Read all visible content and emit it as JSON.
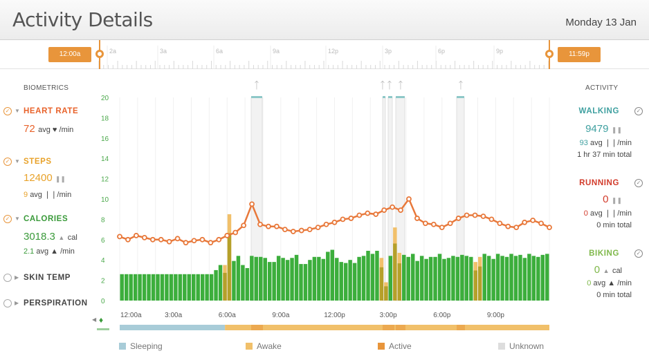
{
  "header": {
    "title": "Activity Details",
    "date": "Monday 13 Jan"
  },
  "timeline": {
    "start_label": "12:00a",
    "end_label": "11:59p",
    "hour_labels": [
      "2a",
      "3a",
      "6a",
      "9a",
      "12p",
      "3p",
      "6p",
      "9p"
    ]
  },
  "biometrics": {
    "heading": "BIOMETRICS",
    "heart_rate": {
      "label": "HEART RATE",
      "value": "72",
      "unit": "avg ♥ /min",
      "color": "#e8622a"
    },
    "steps": {
      "label": "STEPS",
      "value": "12400",
      "avg_value": "9",
      "avg_unit": "avg ❘❘/min",
      "color": "#e8a22a"
    },
    "calories": {
      "label": "CALORIES",
      "value": "3018.3",
      "unit": "cal",
      "avg_value": "2.1",
      "avg_unit": "avg ▲ /min",
      "color": "#3a9a3a"
    },
    "skin_temp": {
      "label": "SKIN TEMP"
    },
    "perspiration": {
      "label": "PERSPIRATION"
    }
  },
  "activity": {
    "heading": "ACTIVITY",
    "walking": {
      "label": "WALKING",
      "value": "9479",
      "avg_value": "93",
      "avg_unit": "avg ❘❘/min",
      "total": "1 hr 37 min total",
      "color": "#3fa0a0"
    },
    "running": {
      "label": "RUNNING",
      "value": "0",
      "avg_value": "0",
      "avg_unit": "avg ❘❘/min",
      "total": "0 min total",
      "color": "#d23a2a"
    },
    "biking": {
      "label": "BIKING",
      "value": "0",
      "unit": "cal",
      "avg_value": "0",
      "avg_unit": "avg ▲ /min",
      "total": "0 min total",
      "color": "#7fb84a"
    }
  },
  "legend": [
    "Sleeping",
    "Awake",
    "Active",
    "Unknown"
  ],
  "colors": {
    "sleeping": "#a8ccd8",
    "awake": "#f1c06a",
    "active": "#e8953b",
    "unknown": "#dddddd",
    "hr": "#e8783a",
    "cal": "#3cae3c",
    "cal_active": "#b5a02a"
  },
  "chart_data": {
    "type": "bar",
    "y_ticks": [
      "0",
      "2",
      "4",
      "6",
      "8",
      "10",
      "12",
      "14",
      "16",
      "18",
      "20"
    ],
    "ylim": [
      0,
      20
    ],
    "x_tick_labels": [
      "12:00a",
      "3:00a",
      "6:00a",
      "9:00a",
      "12:00p",
      "3:00p",
      "6:00p",
      "9:00p"
    ],
    "calories": [
      2.6,
      2.6,
      2.6,
      2.6,
      2.6,
      2.6,
      2.6,
      2.6,
      2.6,
      2.6,
      2.6,
      2.6,
      2.6,
      2.6,
      2.6,
      2.6,
      2.6,
      2.6,
      2.6,
      2.6,
      2.6,
      3.0,
      3.5,
      4.0,
      3.6,
      3.9,
      4.4,
      3.5,
      3.2,
      4.4,
      4.3,
      4.3,
      4.2,
      3.8,
      3.8,
      4.4,
      4.2,
      4.0,
      4.2,
      4.5,
      3.6,
      3.6,
      4.0,
      4.3,
      4.3,
      4.1,
      4.8,
      5.0,
      4.2,
      3.8,
      3.7,
      4.0,
      3.7,
      4.3,
      4.4,
      4.9,
      4.6,
      4.9,
      4.2,
      4.5,
      4.4,
      4.3,
      4.2,
      4.5,
      4.3,
      4.6,
      3.9,
      4.4,
      4.1,
      4.3,
      4.3,
      4.6,
      4.1,
      4.2,
      4.4,
      4.3,
      4.5,
      4.4,
      4.3,
      4.3,
      4.0,
      4.6,
      4.4,
      4.1,
      4.6,
      4.4,
      4.3,
      4.6,
      4.4,
      4.5,
      4.2,
      4.6,
      4.4,
      4.3,
      4.5,
      4.6
    ],
    "heart_rate": [
      6.3,
      6.0,
      6.4,
      6.2,
      6.0,
      6.0,
      5.8,
      6.1,
      5.7,
      5.9,
      6.0,
      5.7,
      6.0,
      6.4,
      6.7,
      7.4,
      9.5,
      7.5,
      7.3,
      7.3,
      7.0,
      6.8,
      6.9,
      7.0,
      7.2,
      7.5,
      7.7,
      8.0,
      8.1,
      8.4,
      8.6,
      8.5,
      8.9,
      9.2,
      8.9,
      10.0,
      8.1,
      7.6,
      7.5,
      7.2,
      7.6,
      8.1,
      8.4,
      8.4,
      8.3,
      8.0,
      7.6,
      7.3,
      7.2,
      7.7,
      7.9,
      7.6,
      7.2
    ],
    "active_bars": {
      "indexes": [
        23,
        24,
        58,
        59,
        61,
        62,
        79,
        80
      ],
      "values": [
        3.5,
        8.5,
        4.2,
        1.8,
        7.2,
        4.7,
        3.8,
        4.3
      ]
    },
    "sleep_periods": [
      [
        0,
        0.245
      ]
    ],
    "walk_markers": [
      "7:30a",
      "2:30p",
      "2:45p",
      "3:10p",
      "6:40p"
    ]
  }
}
